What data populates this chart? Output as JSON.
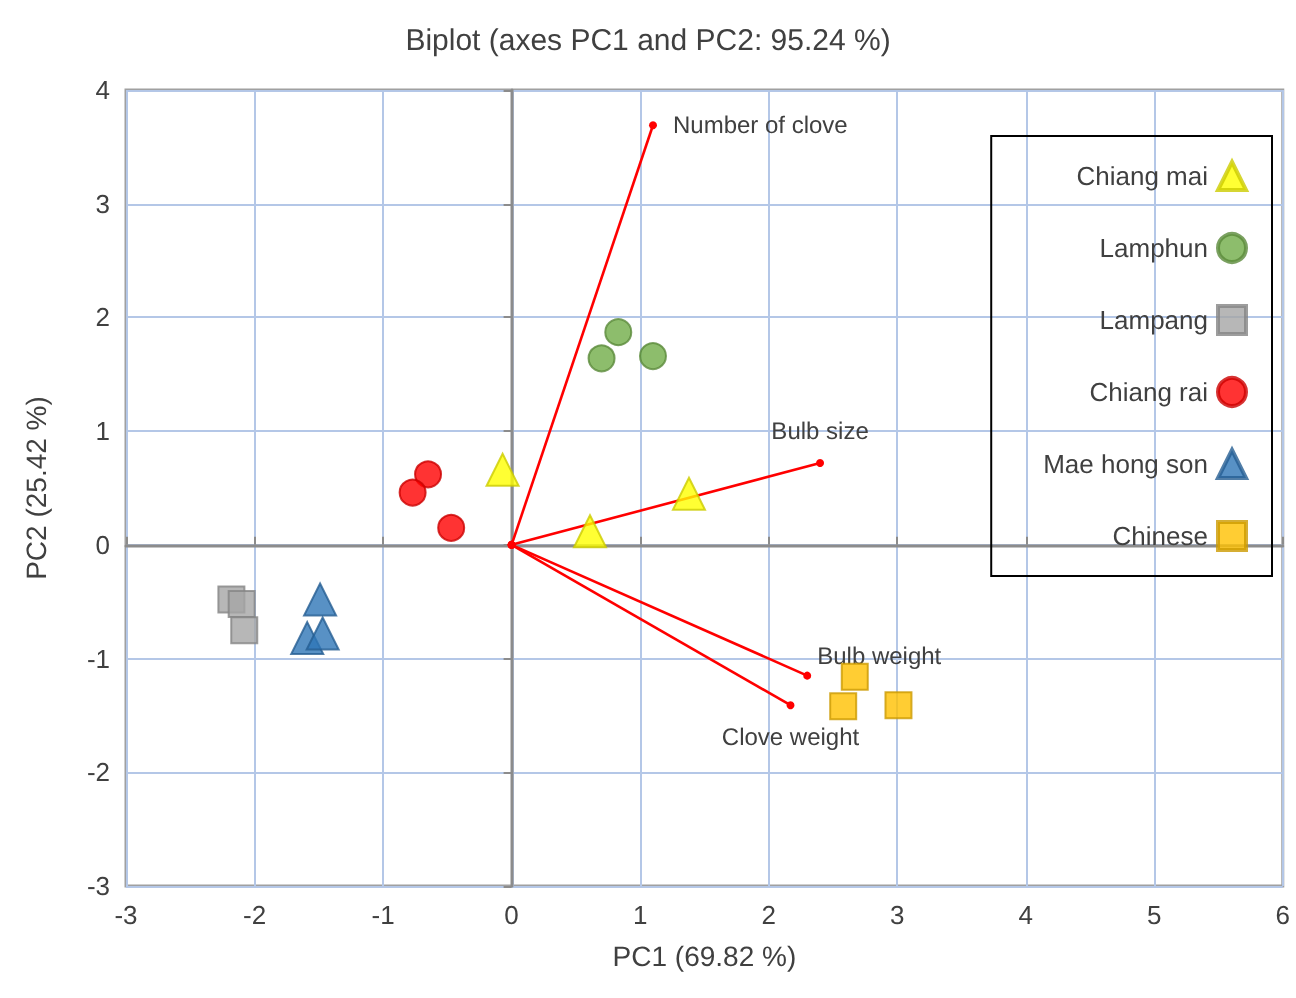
{
  "chart_data": {
    "type": "scatter",
    "title": "Biplot (axes PC1 and PC2: 95.24 %)",
    "xlabel": "PC1 (69.82 %)",
    "ylabel": "PC2 (25.42 %)",
    "xlim": [
      -3,
      6
    ],
    "xticks": [
      -3,
      -2,
      -1,
      0,
      1,
      2,
      3,
      4,
      5,
      6
    ],
    "ylim": [
      -3,
      4
    ],
    "yticks": [
      -3,
      -2,
      -1,
      0,
      1,
      2,
      3,
      4
    ],
    "grid": true,
    "legend": "top right",
    "series": [
      {
        "name": "Chiang mai",
        "marker": "triangle",
        "color": "#ffff00",
        "x": [
          -0.07,
          0.61,
          1.38
        ],
        "values": [
          0.66,
          0.12,
          0.45
        ]
      },
      {
        "name": "Lamphun",
        "marker": "circle",
        "color": "#70ad47",
        "x": [
          0.83,
          0.7,
          1.1
        ],
        "values": [
          1.87,
          1.64,
          1.66
        ]
      },
      {
        "name": "Lampang",
        "marker": "square",
        "color": "#a5a5a5",
        "x": [
          -2.18,
          -2.1,
          -2.08
        ],
        "values": [
          -0.48,
          -0.52,
          -0.75
        ]
      },
      {
        "name": "Chiang rai",
        "marker": "circle",
        "color": "#ff0000",
        "x": [
          -0.65,
          -0.77,
          -0.47
        ],
        "values": [
          0.62,
          0.46,
          0.15
        ]
      },
      {
        "name": "Mae hong son",
        "marker": "triangle",
        "color": "#2e75b6",
        "x": [
          -1.49,
          -1.59,
          -1.47
        ],
        "values": [
          -0.48,
          -0.82,
          -0.78
        ]
      },
      {
        "name": "Chinese",
        "marker": "square",
        "color": "#ffc000",
        "x": [
          2.67,
          2.58,
          3.01
        ],
        "values": [
          -1.16,
          -1.42,
          -1.41
        ]
      },
      {
        "name": "Number of clove",
        "type": "line",
        "marker": "circle",
        "color": "#ff0000",
        "x": [
          0,
          1.1
        ],
        "values": [
          0,
          3.69
        ]
      },
      {
        "name": "Bulb size",
        "type": "line",
        "marker": "circle",
        "color": "#ff0000",
        "x": [
          0,
          2.4
        ],
        "values": [
          0,
          0.72
        ]
      },
      {
        "name": "Bulb weight",
        "type": "line",
        "marker": "circle",
        "color": "#ff0000",
        "x": [
          0,
          2.3
        ],
        "values": [
          0,
          -1.15
        ]
      },
      {
        "name": "Clove weight",
        "type": "line",
        "marker": "circle",
        "color": "#ff0000",
        "x": [
          0,
          2.17
        ],
        "values": [
          0,
          -1.41
        ]
      }
    ]
  }
}
